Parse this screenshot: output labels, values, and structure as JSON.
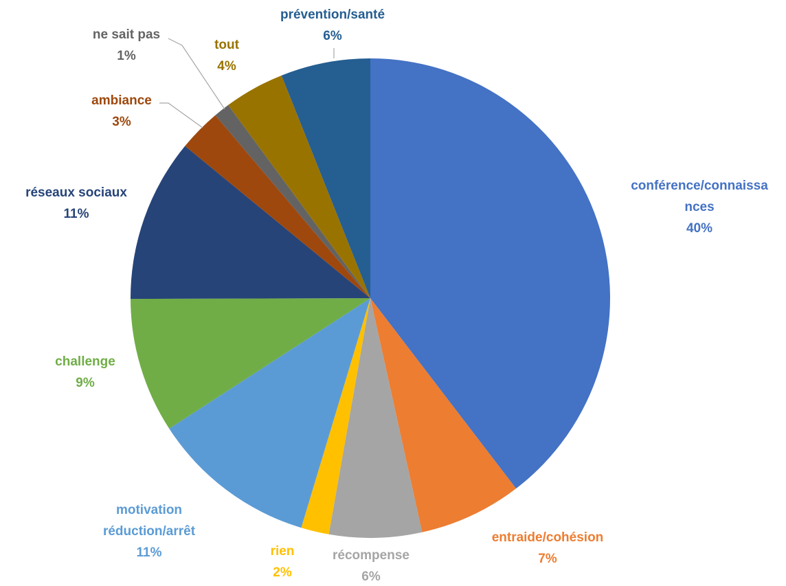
{
  "chart_data": {
    "type": "pie",
    "title": "",
    "start_angle_deg": 0,
    "direction": "clockwise",
    "slices": [
      {
        "label": "conférence/connaissances",
        "label_lines": [
          "conférence/connaissa",
          "nces"
        ],
        "percent_label": "40%",
        "value": 40.0,
        "color": "#4472C4"
      },
      {
        "label": "entraide/cohésion",
        "label_lines": [
          "entraide/cohésion"
        ],
        "percent_label": "7%",
        "value": 7.0,
        "color": "#ED7D31"
      },
      {
        "label": "récompense",
        "label_lines": [
          "récompense"
        ],
        "percent_label": "6%",
        "value": 6.3,
        "color": "#A5A5A5"
      },
      {
        "label": "rien",
        "label_lines": [
          "rien"
        ],
        "percent_label": "2%",
        "value": 1.9,
        "color": "#FFC000"
      },
      {
        "label": "motivation réduction/arrêt",
        "label_lines": [
          "motivation",
          "réduction/arrêt"
        ],
        "percent_label": "11%",
        "value": 11.3,
        "color": "#5B9BD5"
      },
      {
        "label": "challenge",
        "label_lines": [
          "challenge"
        ],
        "percent_label": "9%",
        "value": 9.2,
        "color": "#70AD47"
      },
      {
        "label": "réseaux sociaux",
        "label_lines": [
          "réseaux sociaux"
        ],
        "percent_label": "11%",
        "value": 11.1,
        "color": "#264478"
      },
      {
        "label": "ambiance",
        "label_lines": [
          "ambiance"
        ],
        "percent_label": "3%",
        "value": 2.9,
        "color": "#9E480E"
      },
      {
        "label": "ne sait pas",
        "label_lines": [
          "ne sait pas"
        ],
        "percent_label": "1%",
        "value": 1.1,
        "color": "#636363"
      },
      {
        "label": "tout",
        "label_lines": [
          "tout"
        ],
        "percent_label": "4%",
        "value": 4.1,
        "color": "#997300"
      },
      {
        "label": "prévention/santé",
        "label_lines": [
          "prévention/santé"
        ],
        "percent_label": "6%",
        "value": 6.1,
        "color": "#255E91"
      }
    ]
  }
}
